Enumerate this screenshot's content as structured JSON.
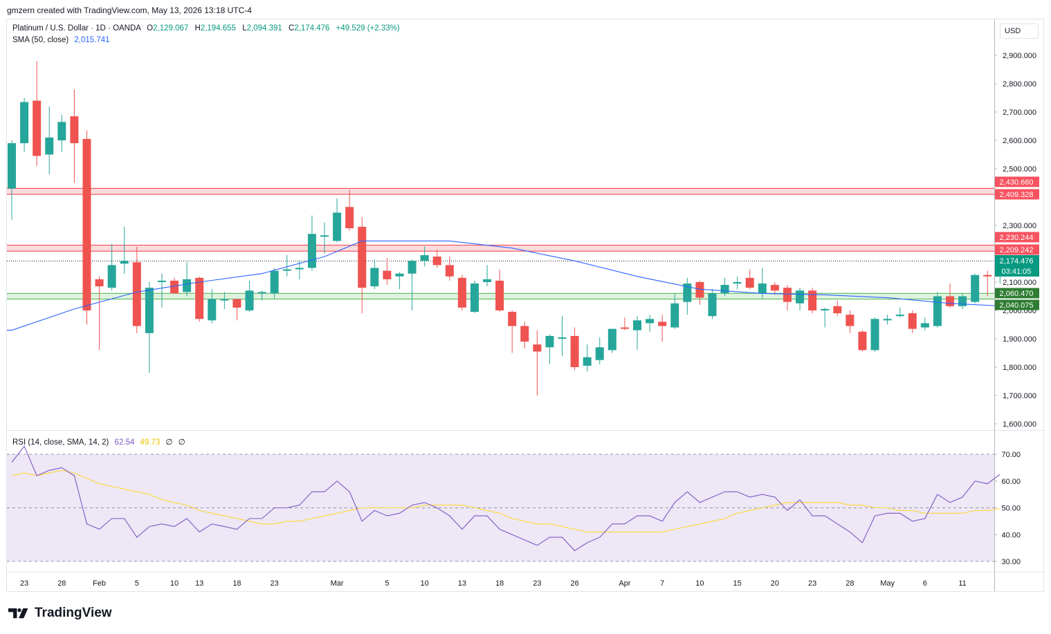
{
  "header": {
    "created_by": "gmzern created with TradingView.com, May 13, 2026 13:18 UTC-4"
  },
  "symbol": {
    "title": "Platinum / U.S. Dollar · 1D · OANDA",
    "open_label": "O",
    "open": "2,129.067",
    "high_label": "H",
    "high": "2,194.655",
    "low_label": "L",
    "low": "2,094.391",
    "close_label": "C",
    "close": "2,174.476",
    "change": "+49.529 (+2.33%)"
  },
  "sma_legend": {
    "label": "SMA (50, close)",
    "value": "2,015.741"
  },
  "rsi_legend": {
    "label": "RSI (14, close, SMA, 14, 2)",
    "rsi": "62.54",
    "sma": "49.73",
    "ex1": "∅",
    "ex2": "∅"
  },
  "currency_button": "USD",
  "price_axis_ticks": [
    "2,900.000",
    "2,800.000",
    "2,700.000",
    "2,600.000",
    "2,500.000",
    "2,300.000",
    "2,100.000",
    "2,000.000",
    "1,900.000",
    "1,800.000",
    "1,700.000",
    "1,600.000"
  ],
  "rsi_axis_ticks": [
    "70.00",
    "60.00",
    "50.00",
    "40.00",
    "30.00"
  ],
  "time_axis_ticks": [
    "23",
    "28",
    "Feb",
    "5",
    "10",
    "13",
    "18",
    "23",
    "Mar",
    "5",
    "10",
    "13",
    "18",
    "23",
    "26",
    "Apr",
    "7",
    "10",
    "15",
    "20",
    "23",
    "28",
    "May",
    "6",
    "11"
  ],
  "price_labels": {
    "zone1_top": "2,430.660",
    "zone1_bottom": "2,409.328",
    "zone2_top": "2,230.244",
    "zone2_bottom": "2,209.242",
    "current": "2,174.476",
    "countdown": "03:41:05",
    "zone3_top": "2,060.470",
    "zone3_bottom": "2,040.075"
  },
  "brand": "TradingView",
  "colors": {
    "up": "#26a69a",
    "down": "#ef5350",
    "sma": "#2962ff",
    "rsi": "#7e57c2",
    "rsi_sma": "#fdd835",
    "resistance_fill": "#f9d6d7",
    "resistance_line": "#f23645",
    "support_fill": "#d9f1d9",
    "support_line": "#4caf50",
    "rsi_band": "#ede7f6"
  },
  "chart_data": {
    "type": "candlestick",
    "symbol": "Platinum / U.S. Dollar",
    "interval": "1D",
    "price_ylim": [
      1580,
      3000
    ],
    "rsi_ylim": [
      25,
      75
    ],
    "candles": [
      {
        "o": 2430,
        "h": 2600,
        "l": 2320,
        "c": 2590
      },
      {
        "o": 2590,
        "h": 2750,
        "l": 2560,
        "c": 2735
      },
      {
        "o": 2740,
        "h": 2880,
        "l": 2510,
        "c": 2545
      },
      {
        "o": 2550,
        "h": 2720,
        "l": 2480,
        "c": 2610
      },
      {
        "o": 2600,
        "h": 2690,
        "l": 2560,
        "c": 2665
      },
      {
        "o": 2685,
        "h": 2780,
        "l": 2450,
        "c": 2590
      },
      {
        "o": 2605,
        "h": 2635,
        "l": 1950,
        "c": 2000
      },
      {
        "o": 2110,
        "h": 2120,
        "l": 1860,
        "c": 2085
      },
      {
        "o": 2080,
        "h": 2235,
        "l": 2070,
        "c": 2160
      },
      {
        "o": 2165,
        "h": 2295,
        "l": 2130,
        "c": 2175
      },
      {
        "o": 2170,
        "h": 2225,
        "l": 1920,
        "c": 1945
      },
      {
        "o": 1920,
        "h": 2100,
        "l": 1780,
        "c": 2080
      },
      {
        "o": 2100,
        "h": 2130,
        "l": 2010,
        "c": 2105
      },
      {
        "o": 2105,
        "h": 2115,
        "l": 2060,
        "c": 2060
      },
      {
        "o": 2065,
        "h": 2170,
        "l": 2050,
        "c": 2110
      },
      {
        "o": 2115,
        "h": 2120,
        "l": 1960,
        "c": 1970
      },
      {
        "o": 1965,
        "h": 2075,
        "l": 1955,
        "c": 2040
      },
      {
        "o": 2040,
        "h": 2065,
        "l": 2005,
        "c": 2040
      },
      {
        "o": 2040,
        "h": 2040,
        "l": 1965,
        "c": 2010
      },
      {
        "o": 2000,
        "h": 2105,
        "l": 1995,
        "c": 2070
      },
      {
        "o": 2065,
        "h": 2070,
        "l": 2035,
        "c": 2065
      },
      {
        "o": 2060,
        "h": 2150,
        "l": 2040,
        "c": 2140
      },
      {
        "o": 2140,
        "h": 2195,
        "l": 2120,
        "c": 2145
      },
      {
        "o": 2150,
        "h": 2175,
        "l": 2110,
        "c": 2150
      },
      {
        "o": 2150,
        "h": 2335,
        "l": 2140,
        "c": 2270
      },
      {
        "o": 2265,
        "h": 2310,
        "l": 2200,
        "c": 2265
      },
      {
        "o": 2245,
        "h": 2395,
        "l": 2240,
        "c": 2345
      },
      {
        "o": 2365,
        "h": 2425,
        "l": 2280,
        "c": 2290
      },
      {
        "o": 2295,
        "h": 2330,
        "l": 1990,
        "c": 2080
      },
      {
        "o": 2085,
        "h": 2180,
        "l": 2075,
        "c": 2150
      },
      {
        "o": 2140,
        "h": 2185,
        "l": 2090,
        "c": 2110
      },
      {
        "o": 2120,
        "h": 2135,
        "l": 2075,
        "c": 2130
      },
      {
        "o": 2130,
        "h": 2180,
        "l": 2000,
        "c": 2175
      },
      {
        "o": 2175,
        "h": 2225,
        "l": 2155,
        "c": 2195
      },
      {
        "o": 2190,
        "h": 2215,
        "l": 2150,
        "c": 2160
      },
      {
        "o": 2160,
        "h": 2190,
        "l": 2105,
        "c": 2120
      },
      {
        "o": 2115,
        "h": 2125,
        "l": 2000,
        "c": 2010
      },
      {
        "o": 1995,
        "h": 2105,
        "l": 1990,
        "c": 2095
      },
      {
        "o": 2100,
        "h": 2160,
        "l": 2085,
        "c": 2110
      },
      {
        "o": 2105,
        "h": 2145,
        "l": 1995,
        "c": 2000
      },
      {
        "o": 1995,
        "h": 2000,
        "l": 1850,
        "c": 1945
      },
      {
        "o": 1945,
        "h": 1960,
        "l": 1865,
        "c": 1890
      },
      {
        "o": 1880,
        "h": 1930,
        "l": 1700,
        "c": 1855
      },
      {
        "o": 1870,
        "h": 1915,
        "l": 1810,
        "c": 1910
      },
      {
        "o": 1905,
        "h": 1980,
        "l": 1840,
        "c": 1905
      },
      {
        "o": 1910,
        "h": 1940,
        "l": 1790,
        "c": 1800
      },
      {
        "o": 1805,
        "h": 1880,
        "l": 1785,
        "c": 1835
      },
      {
        "o": 1825,
        "h": 1905,
        "l": 1810,
        "c": 1870
      },
      {
        "o": 1860,
        "h": 1935,
        "l": 1850,
        "c": 1935
      },
      {
        "o": 1940,
        "h": 1975,
        "l": 1930,
        "c": 1935
      },
      {
        "o": 1930,
        "h": 1980,
        "l": 1860,
        "c": 1965
      },
      {
        "o": 1955,
        "h": 1985,
        "l": 1925,
        "c": 1970
      },
      {
        "o": 1960,
        "h": 1985,
        "l": 1890,
        "c": 1945
      },
      {
        "o": 1940,
        "h": 2060,
        "l": 1935,
        "c": 2025
      },
      {
        "o": 2030,
        "h": 2115,
        "l": 1985,
        "c": 2095
      },
      {
        "o": 2100,
        "h": 2105,
        "l": 2020,
        "c": 2045
      },
      {
        "o": 1980,
        "h": 2075,
        "l": 1970,
        "c": 2060
      },
      {
        "o": 2060,
        "h": 2115,
        "l": 2050,
        "c": 2090
      },
      {
        "o": 2095,
        "h": 2120,
        "l": 2075,
        "c": 2100
      },
      {
        "o": 2115,
        "h": 2145,
        "l": 2075,
        "c": 2080
      },
      {
        "o": 2060,
        "h": 2150,
        "l": 2040,
        "c": 2095
      },
      {
        "o": 2090,
        "h": 2100,
        "l": 2055,
        "c": 2070
      },
      {
        "o": 2080,
        "h": 2090,
        "l": 2000,
        "c": 2030
      },
      {
        "o": 2025,
        "h": 2080,
        "l": 2000,
        "c": 2070
      },
      {
        "o": 2070,
        "h": 2080,
        "l": 1990,
        "c": 2000
      },
      {
        "o": 2000,
        "h": 2010,
        "l": 1940,
        "c": 2005
      },
      {
        "o": 2015,
        "h": 2035,
        "l": 1980,
        "c": 1990
      },
      {
        "o": 1985,
        "h": 2000,
        "l": 1920,
        "c": 1945
      },
      {
        "o": 1925,
        "h": 1930,
        "l": 1855,
        "c": 1860
      },
      {
        "o": 1860,
        "h": 1975,
        "l": 1855,
        "c": 1970
      },
      {
        "o": 1965,
        "h": 1985,
        "l": 1950,
        "c": 1970
      },
      {
        "o": 1985,
        "h": 2010,
        "l": 1975,
        "c": 1985
      },
      {
        "o": 1990,
        "h": 2000,
        "l": 1920,
        "c": 1935
      },
      {
        "o": 1940,
        "h": 1975,
        "l": 1930,
        "c": 1955
      },
      {
        "o": 1945,
        "h": 2065,
        "l": 1940,
        "c": 2050
      },
      {
        "o": 2050,
        "h": 2095,
        "l": 2010,
        "c": 2015
      },
      {
        "o": 2015,
        "h": 2060,
        "l": 2005,
        "c": 2050
      },
      {
        "o": 2030,
        "h": 2130,
        "l": 2025,
        "c": 2125
      },
      {
        "o": 2125,
        "h": 2140,
        "l": 2050,
        "c": 2120
      },
      {
        "o": 2129.067,
        "h": 2194.655,
        "l": 2094.391,
        "c": 2174.476
      }
    ],
    "sma_50": [
      {
        "i": 0,
        "v": 1930
      },
      {
        "i": 5,
        "v": 2005
      },
      {
        "i": 10,
        "v": 2065
      },
      {
        "i": 15,
        "v": 2100
      },
      {
        "i": 20,
        "v": 2130
      },
      {
        "i": 25,
        "v": 2190
      },
      {
        "i": 28,
        "v": 2245
      },
      {
        "i": 35,
        "v": 2245
      },
      {
        "i": 40,
        "v": 2220
      },
      {
        "i": 45,
        "v": 2175
      },
      {
        "i": 50,
        "v": 2120
      },
      {
        "i": 55,
        "v": 2075
      },
      {
        "i": 60,
        "v": 2060
      },
      {
        "i": 65,
        "v": 2055
      },
      {
        "i": 70,
        "v": 2045
      },
      {
        "i": 75,
        "v": 2025
      },
      {
        "i": 79,
        "v": 2015.741
      }
    ],
    "rsi": [
      67,
      73,
      62,
      64,
      65,
      62,
      44,
      42,
      46,
      46,
      39,
      43,
      44,
      43,
      46,
      41,
      44,
      43,
      42,
      46,
      46,
      50,
      50,
      51,
      56,
      56,
      60,
      56,
      45,
      49,
      47,
      48,
      51,
      52,
      50,
      47,
      42,
      47,
      47,
      42,
      40,
      38,
      36,
      39,
      39,
      34,
      37,
      39,
      44,
      44,
      47,
      47,
      45,
      52,
      56,
      52,
      54,
      56,
      56,
      54,
      55,
      54,
      49,
      53,
      47,
      47,
      44,
      41,
      37,
      47,
      48,
      48,
      45,
      46,
      55,
      52,
      54,
      60,
      59,
      62.54
    ],
    "rsi_sma": [
      62,
      63,
      62,
      63,
      64,
      63,
      61,
      59,
      58,
      57,
      56,
      55,
      53,
      52,
      51,
      49,
      48,
      47,
      46,
      45,
      44,
      44,
      45,
      45,
      46,
      47,
      48,
      49,
      50,
      50,
      50,
      50,
      50,
      51,
      51,
      51,
      51,
      50,
      49,
      48,
      46,
      45,
      44,
      44,
      43,
      42,
      41,
      41,
      41,
      41,
      41,
      41,
      41,
      42,
      43,
      44,
      45,
      46,
      48,
      49,
      50,
      51,
      52,
      52,
      52,
      52,
      52,
      51,
      51,
      50,
      50,
      49,
      49,
      48,
      48,
      48,
      48,
      49,
      49,
      49.73
    ],
    "zones": [
      {
        "type": "resistance",
        "top": 2430.66,
        "bottom": 2409.328
      },
      {
        "type": "resistance",
        "top": 2230.244,
        "bottom": 2209.242
      },
      {
        "type": "support",
        "top": 2060.47,
        "bottom": 2040.075
      }
    ],
    "current_price": 2174.476,
    "rsi_levels": [
      70,
      50,
      30
    ]
  }
}
